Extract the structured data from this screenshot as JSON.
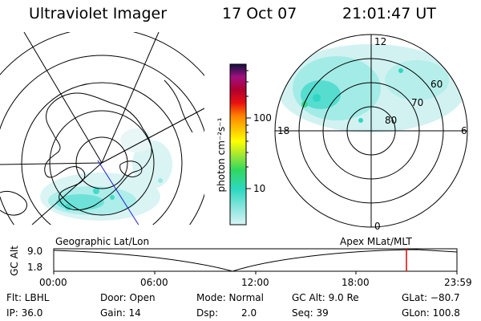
{
  "header": {
    "instrument": "Ultraviolet Imager",
    "date": "17 Oct 07",
    "time": "21:01:47 UT"
  },
  "left_map": {
    "caption": "Geographic Lat/Lon"
  },
  "right_map": {
    "caption": "Apex MLat/MLT",
    "mlt_labels": {
      "top": "12",
      "left": "18",
      "right": "6",
      "bottom": "0"
    },
    "lat_labels": [
      "60",
      "70",
      "80"
    ]
  },
  "colorbar": {
    "unit": "photon cm⁻²s⁻¹",
    "ticks": [
      "100",
      "10"
    ]
  },
  "timeline": {
    "ylabel": "GC Alt",
    "y_ticks": [
      "9.0",
      "1.8"
    ],
    "x_ticks": [
      "00:00",
      "06:00",
      "12:00",
      "18:00",
      "23:59"
    ],
    "marker_color": "#e00000"
  },
  "info": {
    "row1": {
      "filter": "Flt: LBHL",
      "door": "Door: Open",
      "mode": "Mode: Normal",
      "gc_alt": "GC Alt: 9.0 Re",
      "glat": "GLat: −80.7"
    },
    "row2": {
      "ip": "IP: 36.0",
      "gain": "Gain: 14",
      "dsp_label": "Dsp:",
      "dsp_value": "2.0",
      "seq": "Seq: 39",
      "glon": "GLon: 100.8"
    }
  }
}
